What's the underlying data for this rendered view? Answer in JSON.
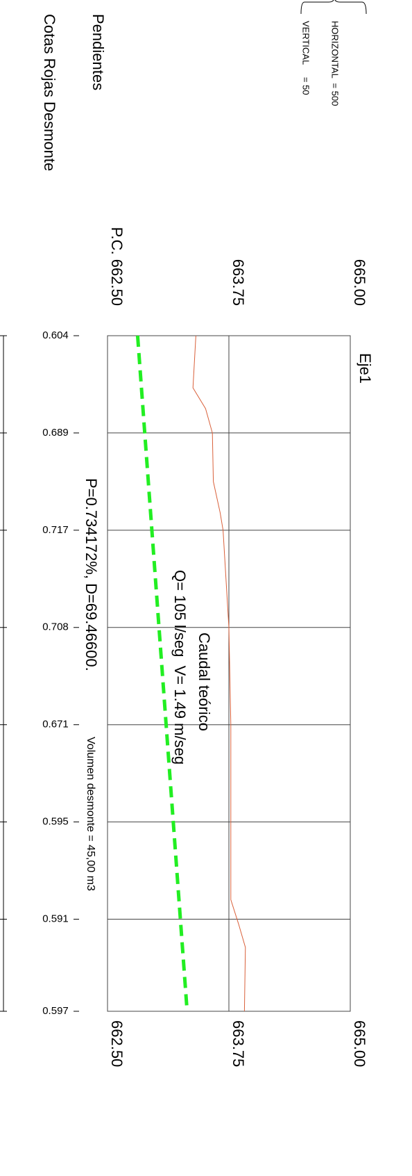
{
  "chart_data": {
    "type": "line",
    "title": "Eje1",
    "row_labels": [
      "Pendientes",
      "Cotas Rojas Desmonte"
    ],
    "scale_labels": [
      "HORIZONTAL  = 500",
      "VERTICAL     = 50"
    ],
    "reference_labels": [
      {
        "value": 665,
        "label": "665.00"
      },
      {
        "value": 663.75,
        "label": "663.75"
      },
      {
        "value": 662.5,
        "label": "P.C. 662.50"
      }
    ],
    "annotations": [
      "P=0.734172%, D=69.46600.",
      "Volumen desmonte = 45,00 m3",
      "Caudal teórico",
      "Q= 105 l/seg  V= 1.49 m/seg"
    ],
    "xlim": [
      0,
      69.466
    ],
    "xticks": [
      0,
      10,
      20,
      30,
      40,
      50,
      60,
      69.466
    ],
    "cotas_rojas": [
      0.604,
      0.689,
      0.717,
      0.708,
      0.671,
      0.595,
      0.591,
      0.597
    ],
    "ylim": [
      662.5,
      665
    ],
    "yticks": [
      {
        "value": 662.5,
        "label": "662.50"
      },
      {
        "value": 663.75,
        "label": "663.75"
      },
      {
        "value": 665,
        "label": "665.00"
      }
    ],
    "grid": true,
    "series": [
      {
        "color": "#d9603a",
        "dashed": false,
        "x": [
          0,
          5.36,
          7.5,
          10,
          15,
          18.2,
          20,
          30,
          40,
          50,
          58,
          60.5,
          62.9,
          69.466
        ],
        "values": [
          663.41,
          663.38,
          663.51,
          663.58,
          663.59,
          663.66,
          663.69,
          663.75,
          663.77,
          663.77,
          663.77,
          663.85,
          663.92,
          663.91
        ]
      },
      {
        "color": "#22ee22",
        "dashed": true,
        "x": [
          0,
          69.466
        ],
        "values": [
          662.81,
          663.32
        ]
      }
    ]
  }
}
